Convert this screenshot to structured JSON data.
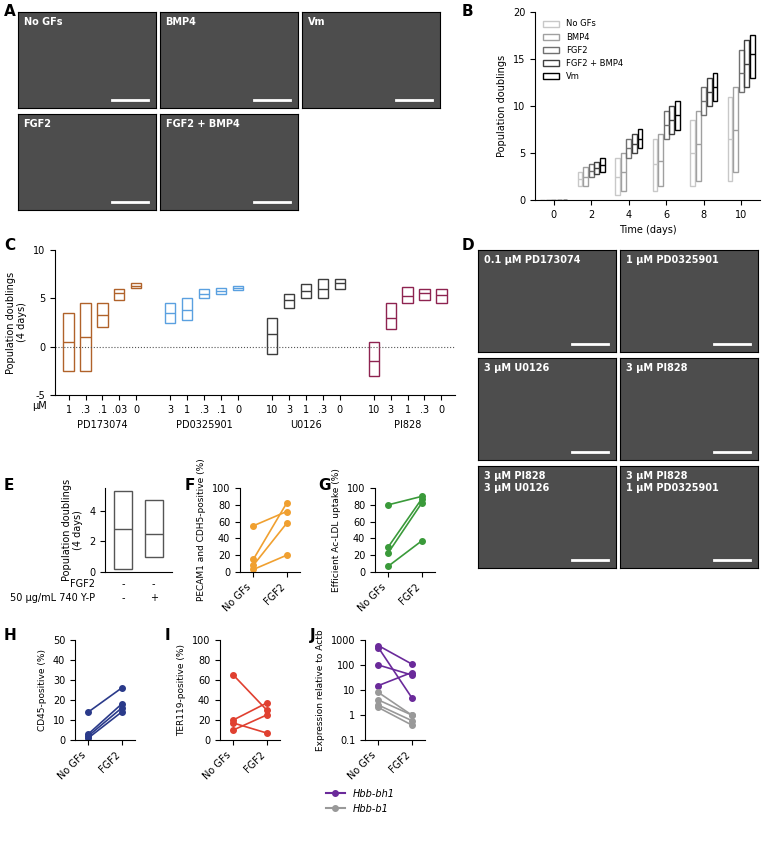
{
  "chart_data": [
    {
      "type": "image",
      "title": "No GFs",
      "annotations": [
        "A"
      ]
    },
    {
      "type": "image",
      "title": "BMP4"
    },
    {
      "type": "image",
      "title": "Vm"
    },
    {
      "type": "image",
      "title": "FGF2"
    },
    {
      "type": "image",
      "title": "FGF2 + BMP4"
    },
    {
      "type": "floating_bar",
      "annotations": [
        "B"
      ],
      "x_label": "Time (days)",
      "y_label": "Population doublings",
      "x": [
        0,
        2,
        4,
        6,
        8,
        10
      ],
      "xlim": [
        -1,
        11
      ],
      "xticks": [
        0,
        2,
        4,
        6,
        8,
        10
      ],
      "ylim": [
        0,
        20
      ],
      "yticks": [
        0,
        5,
        10,
        15,
        20
      ],
      "legend": "upper left",
      "series": [
        {
          "name": "No GFs",
          "color": "#c8c8c8",
          "values": [
            0,
            2.2,
            2.5,
            3.8,
            5,
            6.5
          ],
          "low": [
            0,
            1.5,
            0.5,
            1,
            1.5,
            2
          ],
          "high": [
            0,
            3,
            4.5,
            6.5,
            8.5,
            11
          ]
        },
        {
          "name": "BMP4",
          "color": "#a0a0a0",
          "values": [
            0,
            2.5,
            3,
            4.2,
            6,
            7.5
          ],
          "low": [
            0,
            1.5,
            1,
            1.5,
            2,
            3
          ],
          "high": [
            0,
            3.5,
            5,
            7,
            9.5,
            12
          ]
        },
        {
          "name": "FGF2",
          "color": "#707070",
          "values": [
            0,
            3.1,
            5.5,
            8,
            10.5,
            13.5
          ],
          "low": [
            0,
            2.5,
            4.5,
            6.5,
            9,
            11.5
          ],
          "high": [
            0,
            3.8,
            6.5,
            9.5,
            12,
            16
          ]
        },
        {
          "name": "FGF2 + BMP4",
          "color": "#404040",
          "values": [
            0,
            3.4,
            6,
            8.5,
            11.5,
            14.5
          ],
          "low": [
            0,
            2.8,
            5,
            7,
            10,
            12
          ],
          "high": [
            0,
            4,
            7,
            10,
            13,
            17
          ]
        },
        {
          "name": "Vm",
          "color": "#000000",
          "values": [
            0,
            3.7,
            6.5,
            9,
            12,
            15.5
          ],
          "low": [
            0,
            3,
            5.5,
            7.5,
            10.5,
            13
          ],
          "high": [
            0,
            4.5,
            7.5,
            10.5,
            13.5,
            17.5
          ]
        }
      ]
    },
    {
      "type": "floating_bar",
      "annotations": [
        "C",
        "µM"
      ],
      "y_label": "Population doublings\n(4 days)",
      "ylim": [
        -5,
        10
      ],
      "yticks": [
        -5,
        0,
        5,
        10
      ],
      "series": [
        {
          "name": "PD173074",
          "color": "#b0622a",
          "categories": [
            "1",
            ".3",
            ".1",
            ".03",
            "0"
          ],
          "values": [
            0.5,
            1,
            3.3,
            5.5,
            6.3
          ],
          "low": [
            -2.5,
            -2.5,
            2,
            4.8,
            6.1
          ],
          "high": [
            3.5,
            4.5,
            4.5,
            6,
            6.6
          ]
        },
        {
          "name": "PD0325901",
          "color": "#5aa0e0",
          "categories": [
            "3",
            "1",
            ".3",
            ".1",
            "0"
          ],
          "values": [
            3.5,
            3.8,
            5.4,
            5.8,
            6.1
          ],
          "low": [
            2.5,
            2.8,
            5,
            5.5,
            5.9
          ],
          "high": [
            4.5,
            5,
            6,
            6.1,
            6.3
          ]
        },
        {
          "name": "U0126",
          "color": "#3d3d3d",
          "categories": [
            "10",
            "3",
            "1",
            ".3",
            "0"
          ],
          "values": [
            1.3,
            4.8,
            5.8,
            6,
            6.6
          ],
          "low": [
            -0.8,
            4,
            5,
            5,
            6
          ],
          "high": [
            3,
            5.5,
            6.5,
            7,
            7
          ]
        },
        {
          "name": "PI828",
          "color": "#8e2350",
          "categories": [
            "10",
            "3",
            "1",
            ".3",
            "0"
          ],
          "values": [
            -1.5,
            3,
            5.2,
            5.5,
            5.3
          ],
          "low": [
            -3,
            1.8,
            4.5,
            4.8,
            4.5
          ],
          "high": [
            0.5,
            4.5,
            6.2,
            6,
            6
          ]
        }
      ]
    },
    {
      "type": "image",
      "title": "0.1 µM PD173074",
      "annotations": [
        "D"
      ]
    },
    {
      "type": "image",
      "title": "1 µM PD0325901"
    },
    {
      "type": "image",
      "title": "3 µM U0126"
    },
    {
      "type": "image",
      "title": "3 µM PI828"
    },
    {
      "type": "image",
      "title": "3 µM PI828\n3 µM U0126"
    },
    {
      "type": "image",
      "title": "3 µM PI828\n1 µM PD0325901"
    },
    {
      "type": "floating_bar",
      "annotations": [
        "E"
      ],
      "y_label": "Population doublings\n(4 days)",
      "ylim": [
        0,
        5.5
      ],
      "yticks": [
        0,
        2,
        4
      ],
      "tick_labels": "y",
      "color": "#555555",
      "values": [
        2.8,
        2.5
      ],
      "low": [
        0.2,
        1
      ],
      "high": [
        5.3,
        4.7
      ],
      "rows": [
        {
          "label": "FGF2",
          "values": [
            "-",
            "-"
          ]
        },
        {
          "label": "50 µg/mL 740 Y-P",
          "values": [
            "-",
            "+"
          ]
        }
      ]
    },
    {
      "type": "paired",
      "annotations": [
        "F"
      ],
      "y_label": "PECAM1 and CDH5-positive (%)",
      "categories": [
        "No GFs",
        "FGF2"
      ],
      "ylim": [
        0,
        100
      ],
      "yticks": [
        0,
        20,
        40,
        60,
        80,
        100
      ],
      "marker": "o",
      "series": [
        {
          "color": "#f0a030",
          "values": [
            [
              55,
              72
            ],
            [
              15,
              82
            ],
            [
              8,
              58
            ],
            [
              3,
              20
            ]
          ]
        }
      ]
    },
    {
      "type": "paired",
      "annotations": [
        "G"
      ],
      "y_label": "Efficient Ac-LDL uptake (%)",
      "categories": [
        "No GFs",
        "FGF2"
      ],
      "ylim": [
        0,
        100
      ],
      "yticks": [
        0,
        20,
        40,
        60,
        80,
        100
      ],
      "marker": "o",
      "series": [
        {
          "color": "#3a9a3a",
          "values": [
            [
              80,
              90
            ],
            [
              30,
              87
            ],
            [
              23,
              82
            ],
            [
              7,
              37
            ]
          ]
        }
      ]
    },
    {
      "type": "paired",
      "annotations": [
        "H"
      ],
      "y_label": "CD45-positive (%)",
      "categories": [
        "No GFs",
        "FGF2"
      ],
      "ylim": [
        0,
        50
      ],
      "yticks": [
        0,
        10,
        20,
        30,
        40,
        50
      ],
      "marker": "o",
      "series": [
        {
          "color": "#2a3a8a",
          "values": [
            [
              14,
              26
            ],
            [
              3,
              18
            ],
            [
              2,
              16
            ],
            [
              1,
              14
            ]
          ]
        }
      ]
    },
    {
      "type": "paired",
      "annotations": [
        "I"
      ],
      "y_label": "TER119-positive (%)",
      "categories": [
        "No GFs",
        "FGF2"
      ],
      "ylim": [
        0,
        100
      ],
      "yticks": [
        0,
        20,
        40,
        60,
        80,
        100
      ],
      "marker": "o",
      "series": [
        {
          "color": "#e04030",
          "values": [
            [
              65,
              30
            ],
            [
              20,
              37
            ],
            [
              17,
              7
            ],
            [
              10,
              25
            ]
          ]
        }
      ]
    },
    {
      "type": "paired",
      "annotations": [
        "J"
      ],
      "y_label": "Expression relative to Actb",
      "log": "y",
      "categories": [
        "No GFs",
        "FGF2"
      ],
      "ylim": [
        0.1,
        1000
      ],
      "yticks": [
        0.1,
        1,
        10,
        100,
        1000
      ],
      "marker": "o",
      "legend": "upper left",
      "series": [
        {
          "name": "Hbb-bh1",
          "color": "#6a2a9a",
          "values": [
            [
              600,
              110
            ],
            [
              500,
              5
            ],
            [
              100,
              40
            ],
            [
              15,
              50
            ]
          ]
        },
        {
          "name": "Hbb-b1",
          "color": "#999999",
          "values": [
            [
              8,
              1
            ],
            [
              4,
              1
            ],
            [
              2.5,
              0.6
            ],
            [
              2,
              0.4
            ]
          ]
        }
      ]
    }
  ]
}
